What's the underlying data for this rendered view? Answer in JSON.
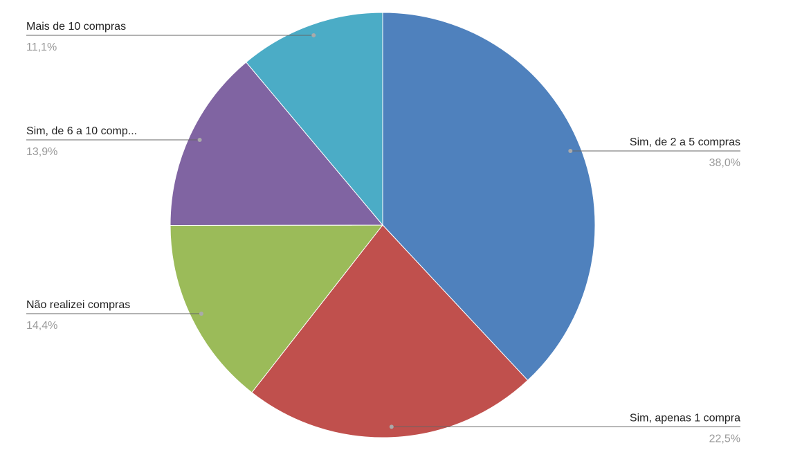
{
  "chart_data": {
    "type": "pie",
    "categories": [
      "Sim, de 2 a 5 compras",
      "Sim, apenas 1 compra",
      "Não realizei compras",
      "Sim, de 6 a 10 comp...",
      "Mais de 10 compras"
    ],
    "values": [
      38.0,
      22.5,
      14.4,
      13.9,
      11.1
    ],
    "value_labels": [
      "38,0%",
      "22,5%",
      "14,4%",
      "13,9%",
      "11,1%"
    ],
    "colors": [
      "#4f81bd",
      "#c0504d",
      "#9bbb59",
      "#8064a2",
      "#4bacc6"
    ]
  }
}
